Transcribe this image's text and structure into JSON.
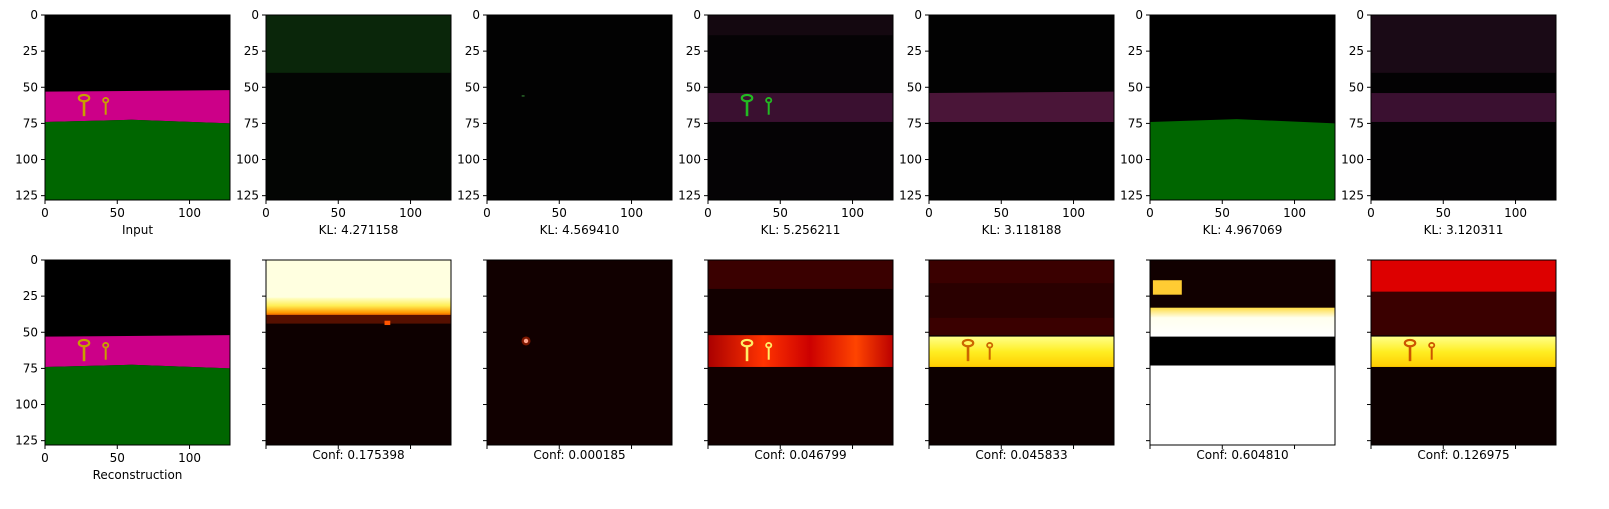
{
  "chart_data": {
    "type": "image-grid",
    "layout": "2 rows x 7 columns of 128x128 image panels",
    "axes": {
      "xlim": [
        0,
        128
      ],
      "ylim": [
        128,
        0
      ],
      "xticks": [
        0,
        50,
        100
      ],
      "yticks": [
        0,
        25,
        50,
        75,
        100,
        125
      ]
    },
    "panels": [
      {
        "row": 0,
        "col": 0,
        "label": "Input",
        "kind": "scene"
      },
      {
        "row": 0,
        "col": 1,
        "label": "KL: 4.271158",
        "kind": "slot-sky"
      },
      {
        "row": 0,
        "col": 2,
        "label": "KL: 4.569410",
        "kind": "slot-empty"
      },
      {
        "row": 0,
        "col": 3,
        "label": "KL: 5.256211",
        "kind": "slot-keys"
      },
      {
        "row": 0,
        "col": 4,
        "label": "KL: 3.118188",
        "kind": "slot-band"
      },
      {
        "row": 0,
        "col": 5,
        "label": "KL: 4.967069",
        "kind": "slot-ground"
      },
      {
        "row": 0,
        "col": 6,
        "label": "KL: 3.120311",
        "kind": "slot-band-dim"
      },
      {
        "row": 1,
        "col": 0,
        "label": "Reconstruction",
        "kind": "scene"
      },
      {
        "row": 1,
        "col": 1,
        "label": "Conf: 0.175398",
        "kind": "heat-sky"
      },
      {
        "row": 1,
        "col": 2,
        "label": "Conf: 0.000185",
        "kind": "heat-dot"
      },
      {
        "row": 1,
        "col": 3,
        "label": "Conf: 0.046799",
        "kind": "heat-band-red"
      },
      {
        "row": 1,
        "col": 4,
        "label": "Conf: 0.045833",
        "kind": "heat-band-yellow"
      },
      {
        "row": 1,
        "col": 5,
        "label": "Conf: 0.604810",
        "kind": "heat-ground"
      },
      {
        "row": 1,
        "col": 6,
        "label": "Conf: 0.126975",
        "kind": "heat-band-top"
      }
    ]
  },
  "colors": {
    "sky": "#000000",
    "band": "#cc0088",
    "ground": "#006600",
    "key": "#c8a000",
    "heat_dark": "#0d0000",
    "heat_red": "#7a0000",
    "heat_orange": "#ff5500",
    "heat_yellow": "#ffff44",
    "heat_white": "#ffffff"
  }
}
